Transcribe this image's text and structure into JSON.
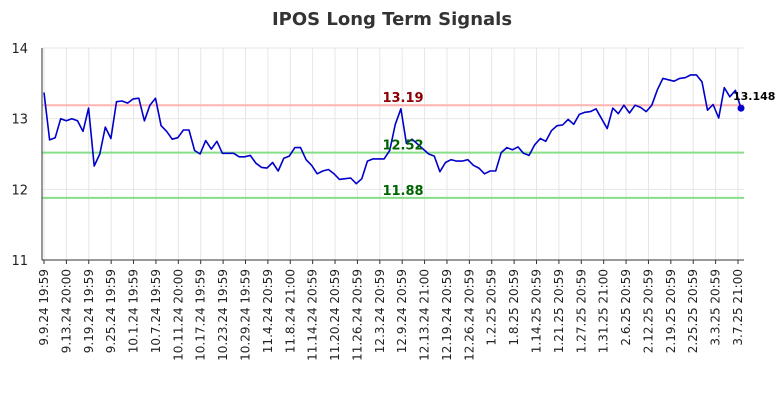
{
  "chart_data": {
    "type": "line",
    "title": "IPOS Long Term Signals",
    "xlabel": "",
    "ylabel": "",
    "ylim": [
      11,
      14
    ],
    "y_ticks": [
      "11",
      "12",
      "13",
      "14"
    ],
    "x_tick_labels": [
      "9.9.24 19:59",
      "9.13.24 20:00",
      "9.19.24 19:59",
      "9.25.24 19:59",
      "10.1.24 19:59",
      "10.7.24 19:59",
      "10.11.24 20:00",
      "10.17.24 19:59",
      "10.23.24 19:59",
      "10.29.24 19:59",
      "11.4.24 20:59",
      "11.8.24 21:00",
      "11.14.24 20:59",
      "11.20.24 20:59",
      "11.26.24 20:59",
      "12.3.24 20:59",
      "12.9.24 20:59",
      "12.13.24 21:00",
      "12.19.24 20:59",
      "12.26.24 20:59",
      "1.2.25 20:59",
      "1.8.25 20:59",
      "1.14.25 20:59",
      "1.21.25 20:59",
      "1.27.25 20:59",
      "1.31.25 21:00",
      "2.6.25 20:59",
      "2.12.25 20:59",
      "2.19.25 20:59",
      "2.25.25 20:59",
      "3.3.25 20:59",
      "3.7.25 21:00"
    ],
    "grid": true,
    "legend": "none",
    "series": [
      {
        "color": "#0000cc",
        "values": [
          13.37,
          12.7,
          12.73,
          13.0,
          12.97,
          13.0,
          12.97,
          12.82,
          13.15,
          12.33,
          12.5,
          12.88,
          12.72,
          13.24,
          13.25,
          13.22,
          13.28,
          13.29,
          12.97,
          13.19,
          13.29,
          12.9,
          12.82,
          12.71,
          12.73,
          12.84,
          12.84,
          12.55,
          12.5,
          12.69,
          12.57,
          12.68,
          12.51,
          12.51,
          12.51,
          12.46,
          12.46,
          12.48,
          12.37,
          12.31,
          12.3,
          12.38,
          12.26,
          12.44,
          12.47,
          12.59,
          12.59,
          12.42,
          12.34,
          12.22,
          12.26,
          12.28,
          12.22,
          12.14,
          12.15,
          12.16,
          12.08,
          12.15,
          12.4,
          12.43,
          12.43,
          12.43,
          12.55,
          12.92,
          13.14,
          12.65,
          12.71,
          12.64,
          12.57,
          12.5,
          12.47,
          12.25,
          12.38,
          12.42,
          12.4,
          12.4,
          12.42,
          12.34,
          12.3,
          12.22,
          12.26,
          12.26,
          12.52,
          12.59,
          12.56,
          12.6,
          12.51,
          12.48,
          12.63,
          12.72,
          12.68,
          12.83,
          12.9,
          12.91,
          12.99,
          12.92,
          13.06,
          13.09,
          13.1,
          13.14,
          13.0,
          12.86,
          13.15,
          13.07,
          13.19,
          13.08,
          13.19,
          13.16,
          13.1,
          13.19,
          13.41,
          13.57,
          13.55,
          13.53,
          13.57,
          13.58,
          13.62,
          13.62,
          13.52,
          13.12,
          13.2,
          13.01,
          13.44,
          13.31,
          13.4,
          13.148
        ]
      }
    ],
    "levels": [
      {
        "value": 13.19,
        "label": "13.19",
        "line_color": "#ffb3b3",
        "label_color": "#8b0000"
      },
      {
        "value": 12.52,
        "label": "12.52",
        "line_color": "#88dd88",
        "label_color": "#006400"
      },
      {
        "value": 11.88,
        "label": "11.88",
        "line_color": "#88dd88",
        "label_color": "#006400"
      }
    ],
    "last_value": {
      "value": 13.148,
      "label": "13.148",
      "color": "#0000cc"
    }
  }
}
